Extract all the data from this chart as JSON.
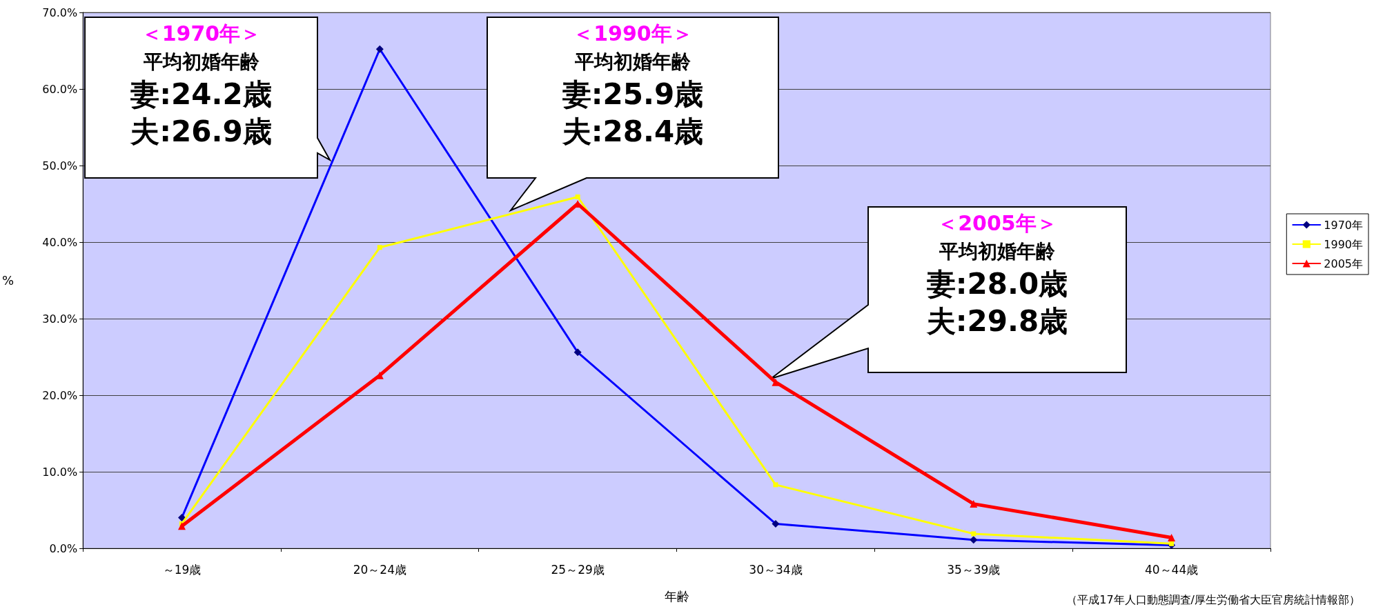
{
  "chart_data": {
    "type": "line",
    "xlabel": "年齢",
    "ylabel": "%",
    "categories": [
      "～19歳",
      "20～24歳",
      "25～29歳",
      "30～34歳",
      "35～39歳",
      "40～44歳"
    ],
    "series": [
      {
        "name": "1970年",
        "color": "#0000ff",
        "marker": "diamond",
        "values": [
          4.0,
          65.2,
          25.6,
          3.2,
          1.1,
          0.4
        ]
      },
      {
        "name": "1990年",
        "color": "#ffff00",
        "marker": "square",
        "values": [
          3.2,
          39.3,
          45.9,
          8.3,
          1.9,
          0.6
        ]
      },
      {
        "name": "2005年",
        "color": "#ff0000",
        "marker": "triangle",
        "values": [
          2.9,
          22.6,
          45.0,
          21.7,
          5.8,
          1.4
        ]
      }
    ],
    "ylim": [
      0,
      70
    ],
    "yticks": [
      {
        "value": 0,
        "label": "0.0%"
      },
      {
        "value": 10,
        "label": "10.0%"
      },
      {
        "value": 20,
        "label": "20.0%"
      },
      {
        "value": 30,
        "label": "30.0%"
      },
      {
        "value": 40,
        "label": "40.0%"
      },
      {
        "value": 50,
        "label": "50.0%"
      },
      {
        "value": 60,
        "label": "60.0%"
      },
      {
        "value": 70,
        "label": "70.0%"
      }
    ],
    "grid": "y",
    "legend": "right",
    "annotations": [
      "＜1970年＞",
      "平均初婚年齢",
      "妻:24.2歳",
      "夫:26.9歳",
      "＜1990年＞",
      "平均初婚年齢",
      "妻:25.9歳",
      "夫:28.4歳",
      "＜2005年＞",
      "平均初婚年齢",
      "妻:28.0歳",
      "夫:29.8歳",
      "（平成17年人口動態調査/厚生労働省大臣官房統計情報部）"
    ]
  }
}
